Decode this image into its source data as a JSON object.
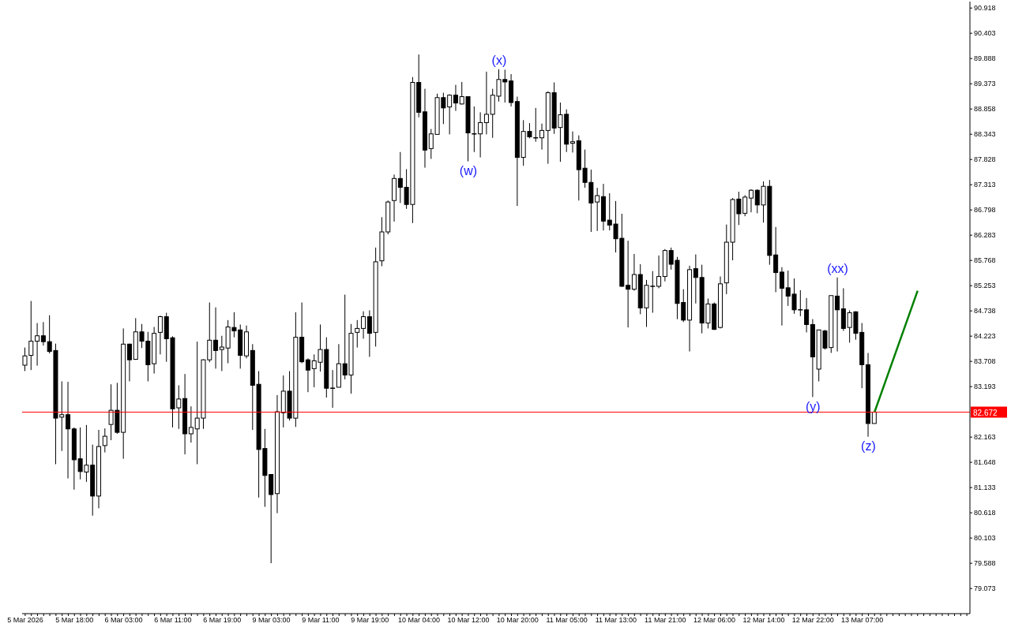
{
  "chart_data": {
    "type": "candlestick",
    "categories": [
      "5 Mar 2026",
      null,
      null,
      null,
      null,
      null,
      null,
      null,
      "5 Mar 18:00",
      null,
      null,
      null,
      null,
      null,
      null,
      null,
      "6 Mar 03:00",
      null,
      null,
      null,
      null,
      null,
      null,
      null,
      "6 Mar 11:00",
      null,
      null,
      null,
      null,
      null,
      null,
      null,
      "6 Mar 19:00",
      null,
      null,
      null,
      null,
      null,
      null,
      null,
      "9 Mar 03:00",
      null,
      null,
      null,
      null,
      null,
      null,
      null,
      "9 Mar 11:00",
      null,
      null,
      null,
      null,
      null,
      null,
      null,
      "9 Mar 19:00",
      null,
      null,
      null,
      null,
      null,
      null,
      null,
      "10 Mar 04:00",
      null,
      null,
      null,
      null,
      null,
      null,
      null,
      "10 Mar 12:00",
      null,
      null,
      null,
      null,
      null,
      null,
      null,
      "10 Mar 20:00",
      null,
      null,
      null,
      null,
      null,
      null,
      null,
      "11 Mar 05:00",
      null,
      null,
      null,
      null,
      null,
      null,
      null,
      "11 Mar 13:00",
      null,
      null,
      null,
      null,
      null,
      null,
      null,
      "11 Mar 21:00",
      null,
      null,
      null,
      null,
      null,
      null,
      null,
      "12 Mar 06:00",
      null,
      null,
      null,
      null,
      null,
      null,
      null,
      "12 Mar 14:00",
      null,
      null,
      null,
      null,
      null,
      null,
      null,
      "12 Mar 22:00",
      null,
      null,
      null,
      null,
      null,
      null,
      null,
      "13 Mar 07:00",
      null,
      null,
      null,
      null,
      null,
      null,
      null,
      null,
      null,
      null,
      null,
      null,
      null,
      null,
      null,
      null,
      null
    ],
    "ohlc": [
      [
        83.63,
        83.99,
        83.51,
        83.82
      ],
      [
        83.83,
        84.94,
        83.53,
        84.12
      ],
      [
        84.12,
        84.49,
        83.62,
        84.23
      ],
      [
        84.23,
        84.51,
        84.03,
        84.11
      ],
      [
        84.11,
        84.65,
        83.87,
        83.91
      ],
      [
        83.93,
        84.07,
        81.61,
        82.55
      ],
      [
        82.57,
        83.3,
        81.88,
        82.62
      ],
      [
        82.62,
        83.29,
        81.32,
        82.33
      ],
      [
        82.33,
        82.36,
        81.09,
        81.7
      ],
      [
        81.72,
        82.36,
        81.3,
        81.46
      ],
      [
        81.45,
        82.41,
        81.25,
        81.59
      ],
      [
        81.59,
        82.01,
        80.56,
        80.96
      ],
      [
        80.96,
        82.31,
        80.71,
        81.97
      ],
      [
        81.99,
        82.34,
        81.85,
        82.18
      ],
      [
        82.42,
        83.24,
        82.1,
        82.71
      ],
      [
        82.71,
        83.27,
        82.23,
        82.26
      ],
      [
        82.26,
        84.38,
        81.72,
        84.06
      ],
      [
        84.06,
        84.07,
        83.3,
        83.74
      ],
      [
        83.75,
        84.59,
        83.74,
        84.31
      ],
      [
        84.31,
        84.47,
        83.98,
        84.12
      ],
      [
        84.12,
        84.31,
        83.3,
        83.64
      ],
      [
        83.66,
        84.41,
        83.46,
        84.28
      ],
      [
        84.3,
        84.64,
        83.85,
        84.62
      ],
      [
        84.62,
        84.7,
        83.7,
        84.17
      ],
      [
        84.19,
        84.22,
        82.36,
        82.74
      ],
      [
        82.76,
        83.22,
        82.33,
        82.94
      ],
      [
        82.95,
        83.45,
        81.81,
        82.23
      ],
      [
        82.23,
        82.79,
        82.05,
        82.36
      ],
      [
        82.33,
        84.11,
        81.61,
        82.55
      ],
      [
        82.55,
        83.75,
        82.33,
        83.74
      ],
      [
        83.74,
        84.91,
        83.69,
        84.14
      ],
      [
        84.14,
        84.81,
        83.56,
        83.93
      ],
      [
        83.95,
        84.23,
        83.51,
        84.0
      ],
      [
        83.98,
        84.55,
        83.67,
        84.41
      ],
      [
        84.4,
        84.71,
        84.2,
        84.33
      ],
      [
        84.35,
        84.46,
        83.56,
        83.83
      ],
      [
        83.82,
        84.44,
        83.77,
        84.31
      ],
      [
        83.93,
        84.06,
        82.31,
        83.22
      ],
      [
        83.24,
        83.51,
        80.93,
        81.91
      ],
      [
        81.93,
        82.33,
        80.74,
        81.38
      ],
      [
        81.4,
        81.4,
        79.59,
        80.99
      ],
      [
        81.01,
        83.02,
        80.61,
        82.68
      ],
      [
        82.66,
        83.42,
        82.36,
        83.1
      ],
      [
        83.1,
        83.51,
        82.5,
        82.55
      ],
      [
        82.55,
        84.71,
        82.37,
        84.2
      ],
      [
        84.2,
        84.91,
        83.67,
        83.7
      ],
      [
        83.74,
        83.77,
        83.08,
        83.53
      ],
      [
        83.56,
        83.85,
        83.18,
        83.72
      ],
      [
        83.69,
        84.46,
        83.5,
        83.95
      ],
      [
        83.95,
        84.2,
        82.97,
        83.16
      ],
      [
        83.16,
        83.53,
        82.76,
        83.16
      ],
      [
        83.18,
        84.06,
        83.18,
        83.66
      ],
      [
        83.66,
        85.07,
        83.34,
        83.43
      ],
      [
        83.43,
        84.47,
        83.05,
        84.28
      ],
      [
        84.3,
        84.55,
        83.99,
        84.38
      ],
      [
        84.38,
        84.73,
        84.17,
        84.62
      ],
      [
        84.62,
        84.75,
        83.8,
        84.28
      ],
      [
        84.3,
        86.03,
        84.01,
        85.74
      ],
      [
        85.76,
        86.65,
        85.65,
        86.35
      ],
      [
        86.35,
        86.99,
        86.3,
        86.96
      ],
      [
        86.99,
        87.52,
        86.56,
        87.44
      ],
      [
        87.44,
        87.98,
        86.94,
        87.26
      ],
      [
        87.26,
        87.63,
        86.82,
        86.91
      ],
      [
        86.91,
        89.51,
        86.53,
        89.4
      ],
      [
        89.4,
        89.97,
        88.69,
        88.79
      ],
      [
        88.8,
        89.27,
        87.66,
        88.02
      ],
      [
        88.05,
        88.45,
        87.84,
        88.35
      ],
      [
        88.34,
        89.17,
        88.34,
        89.09
      ],
      [
        89.09,
        89.19,
        88.55,
        88.88
      ],
      [
        88.9,
        89.16,
        88.34,
        89.14
      ],
      [
        89.14,
        89.35,
        88.82,
        88.98
      ],
      [
        88.96,
        89.41,
        88.95,
        89.11
      ],
      [
        89.11,
        89.11,
        87.79,
        88.37
      ],
      [
        88.35,
        88.91,
        87.98,
        88.35
      ],
      [
        88.35,
        88.79,
        87.87,
        88.58
      ],
      [
        88.58,
        89.62,
        88.34,
        88.75
      ],
      [
        88.75,
        89.27,
        88.27,
        89.14
      ],
      [
        89.12,
        89.67,
        89.01,
        89.46
      ],
      [
        89.46,
        89.66,
        88.99,
        89.41
      ],
      [
        89.43,
        89.57,
        88.91,
        88.99
      ],
      [
        89.01,
        89.11,
        86.88,
        87.87
      ],
      [
        87.87,
        88.63,
        87.7,
        88.4
      ],
      [
        88.4,
        88.57,
        88.26,
        88.29
      ],
      [
        88.27,
        88.88,
        88.19,
        88.27
      ],
      [
        88.27,
        88.56,
        88.03,
        88.42
      ],
      [
        88.42,
        89.22,
        87.74,
        89.19
      ],
      [
        89.19,
        89.4,
        88.35,
        88.47
      ],
      [
        88.48,
        88.99,
        87.78,
        88.74
      ],
      [
        88.75,
        88.85,
        87.98,
        88.14
      ],
      [
        88.16,
        88.4,
        87.97,
        88.19
      ],
      [
        88.21,
        88.32,
        86.99,
        87.62
      ],
      [
        87.65,
        88.03,
        87.25,
        87.36
      ],
      [
        87.36,
        87.62,
        86.35,
        86.94
      ],
      [
        86.96,
        87.25,
        86.37,
        87.09
      ],
      [
        87.07,
        87.33,
        86.38,
        86.57
      ],
      [
        86.59,
        87.14,
        86.38,
        86.49
      ],
      [
        86.51,
        86.98,
        85.93,
        86.21
      ],
      [
        86.22,
        86.72,
        85.23,
        85.24
      ],
      [
        85.26,
        86.17,
        84.4,
        85.18
      ],
      [
        85.18,
        85.9,
        85.15,
        85.48
      ],
      [
        85.48,
        85.69,
        84.67,
        84.8
      ],
      [
        84.8,
        85.37,
        84.41,
        85.26
      ],
      [
        85.24,
        85.55,
        84.7,
        85.24
      ],
      [
        85.24,
        85.87,
        85.2,
        85.44
      ],
      [
        85.44,
        86.0,
        85.34,
        85.97
      ],
      [
        85.97,
        86.03,
        85.58,
        85.69
      ],
      [
        85.77,
        85.84,
        84.57,
        84.89
      ],
      [
        84.91,
        85.18,
        84.51,
        84.55
      ],
      [
        84.55,
        85.66,
        83.91,
        85.58
      ],
      [
        85.6,
        85.89,
        84.89,
        85.42
      ],
      [
        85.42,
        85.68,
        84.28,
        84.49
      ],
      [
        84.49,
        84.99,
        84.38,
        84.88
      ],
      [
        84.88,
        84.91,
        84.35,
        84.36
      ],
      [
        84.4,
        85.44,
        84.38,
        85.29
      ],
      [
        85.31,
        86.5,
        85.08,
        86.14
      ],
      [
        86.14,
        87.04,
        85.77,
        87.01
      ],
      [
        87.02,
        87.17,
        86.49,
        86.72
      ],
      [
        86.73,
        87.1,
        86.67,
        87.06
      ],
      [
        87.04,
        87.22,
        86.75,
        87.2
      ],
      [
        87.2,
        87.22,
        86.73,
        86.9
      ],
      [
        86.9,
        87.38,
        86.54,
        87.28
      ],
      [
        87.28,
        87.41,
        85.68,
        85.87
      ],
      [
        85.88,
        86.45,
        85.12,
        85.52
      ],
      [
        85.53,
        85.63,
        84.44,
        85.2
      ],
      [
        85.21,
        85.56,
        84.84,
        85.04
      ],
      [
        85.08,
        85.4,
        84.68,
        84.76
      ],
      [
        84.76,
        85.16,
        84.63,
        84.76
      ],
      [
        84.76,
        85.0,
        84.3,
        84.46
      ],
      [
        84.46,
        84.57,
        82.98,
        83.8
      ],
      [
        83.55,
        84.35,
        83.3,
        84.35
      ],
      [
        84.33,
        84.35,
        83.95,
        83.98
      ],
      [
        83.99,
        85.05,
        83.88,
        85.05
      ],
      [
        85.04,
        85.42,
        83.91,
        84.76
      ],
      [
        84.78,
        85.2,
        84.33,
        84.38
      ],
      [
        84.4,
        84.75,
        84.09,
        84.7
      ],
      [
        84.72,
        84.73,
        84.15,
        84.28
      ],
      [
        84.3,
        84.49,
        83.16,
        83.64
      ],
      [
        83.64,
        83.88,
        82.17,
        82.44
      ],
      [
        82.44,
        82.672,
        82.44,
        82.672
      ],
      null,
      null,
      null,
      null,
      null,
      null,
      null,
      null,
      null,
      null,
      null,
      null,
      null,
      null,
      null
    ],
    "series": [
      {
        "type": "line",
        "color": "#008000",
        "values": [
          null,
          null,
          null,
          null,
          null,
          null,
          null,
          null,
          null,
          null,
          null,
          null,
          null,
          null,
          null,
          null,
          null,
          null,
          null,
          null,
          null,
          null,
          null,
          null,
          null,
          null,
          null,
          null,
          null,
          null,
          null,
          null,
          null,
          null,
          null,
          null,
          null,
          null,
          null,
          null,
          null,
          null,
          null,
          null,
          null,
          null,
          null,
          null,
          null,
          null,
          null,
          null,
          null,
          null,
          null,
          null,
          null,
          null,
          null,
          null,
          null,
          null,
          null,
          null,
          null,
          null,
          null,
          null,
          null,
          null,
          null,
          null,
          null,
          null,
          null,
          null,
          null,
          null,
          null,
          null,
          null,
          null,
          null,
          null,
          null,
          null,
          null,
          null,
          null,
          null,
          null,
          null,
          null,
          null,
          null,
          null,
          null,
          null,
          null,
          null,
          null,
          null,
          null,
          null,
          null,
          null,
          null,
          null,
          null,
          null,
          null,
          null,
          null,
          null,
          null,
          null,
          null,
          null,
          null,
          null,
          null,
          null,
          null,
          null,
          null,
          null,
          null,
          null,
          null,
          null,
          null,
          null,
          null,
          null,
          null,
          null,
          null,
          null,
          82.672,
          null,
          null,
          null,
          null,
          null,
          null,
          85.15,
          null,
          null,
          null,
          null,
          null,
          null,
          null,
          null
        ]
      }
    ],
    "ylim": [
      78.56,
      91.05
    ],
    "yticks": [
      79.073,
      79.588,
      80.103,
      80.618,
      81.133,
      81.648,
      82.163,
      83.193,
      83.708,
      84.223,
      84.738,
      85.253,
      85.768,
      86.283,
      86.798,
      87.313,
      87.828,
      88.343,
      88.858,
      89.373,
      89.888,
      90.403,
      90.918
    ],
    "ref_lines": [
      {
        "axis": "y",
        "value": 82.672,
        "label": "82.672",
        "color": "#ff0000"
      }
    ],
    "annotations": [
      {
        "text": "(w)",
        "y": 87.79
      },
      {
        "text": "(x)",
        "y": 89.67
      },
      {
        "text": "(y)",
        "y": 82.98
      },
      {
        "text": "(xx)",
        "y": 85.42
      },
      {
        "text": "(z)",
        "y": 82.17
      }
    ]
  }
}
